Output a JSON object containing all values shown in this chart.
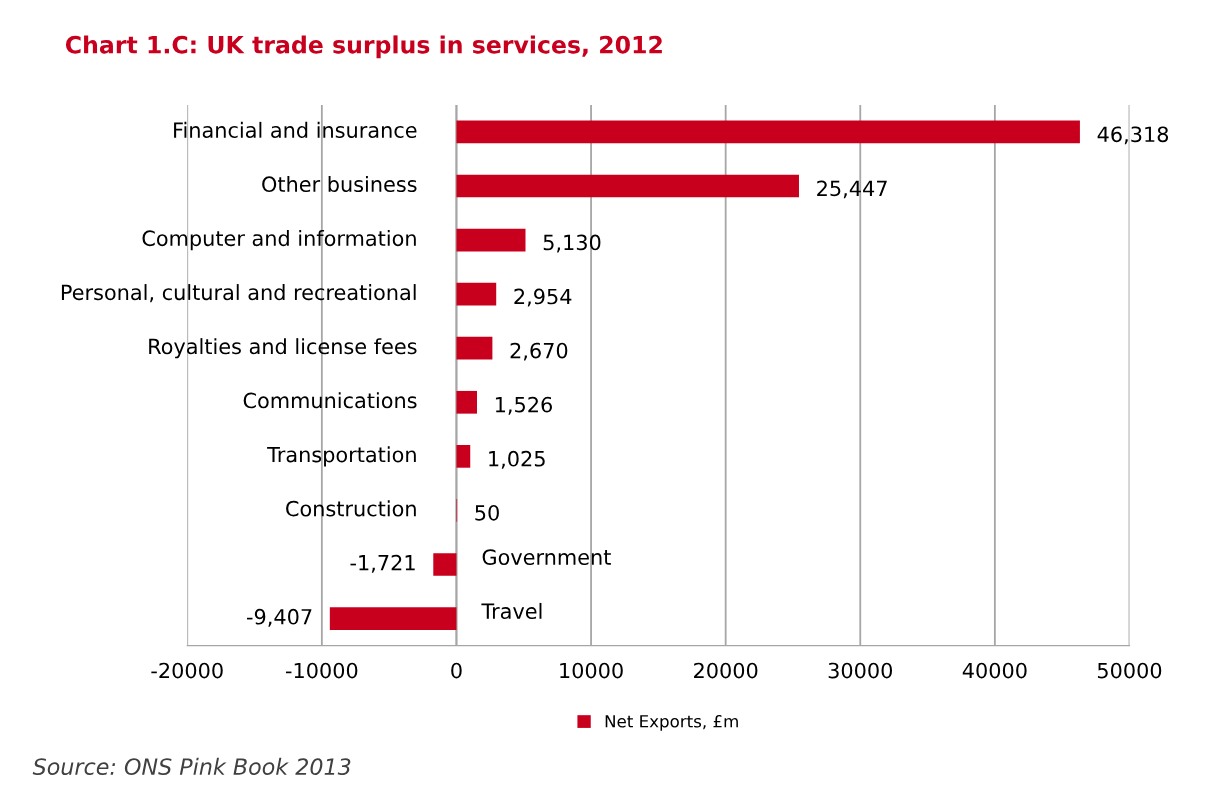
{
  "chart_data": {
    "type": "bar",
    "orientation": "horizontal",
    "title": "Chart 1.C: UK trade surplus in services, 2012",
    "categories": [
      "Financial and insurance",
      "Other business",
      "Computer and information",
      "Personal, cultural and recreational",
      "Royalties and license fees",
      "Communications",
      "Transportation",
      "Construction",
      "Government",
      "Travel"
    ],
    "series": [
      {
        "name": "Net Exports, £m",
        "color": "#c8001e",
        "values": [
          46318,
          25447,
          5130,
          2954,
          2670,
          1526,
          1025,
          50,
          -1721,
          -9407
        ]
      }
    ],
    "value_labels": [
      "46,318",
      "25,447",
      "5,130",
      "2,954",
      "2,670",
      "1,526",
      "1,025",
      "50",
      "-1,721",
      "-9,407"
    ],
    "xlim": [
      -20000,
      50000
    ],
    "xticks": [
      -20000,
      -10000,
      0,
      10000,
      20000,
      30000,
      40000,
      50000
    ],
    "grid": "x",
    "legend": "bottom",
    "annotations": [
      "Source: ONS Pink Book 2013"
    ]
  }
}
